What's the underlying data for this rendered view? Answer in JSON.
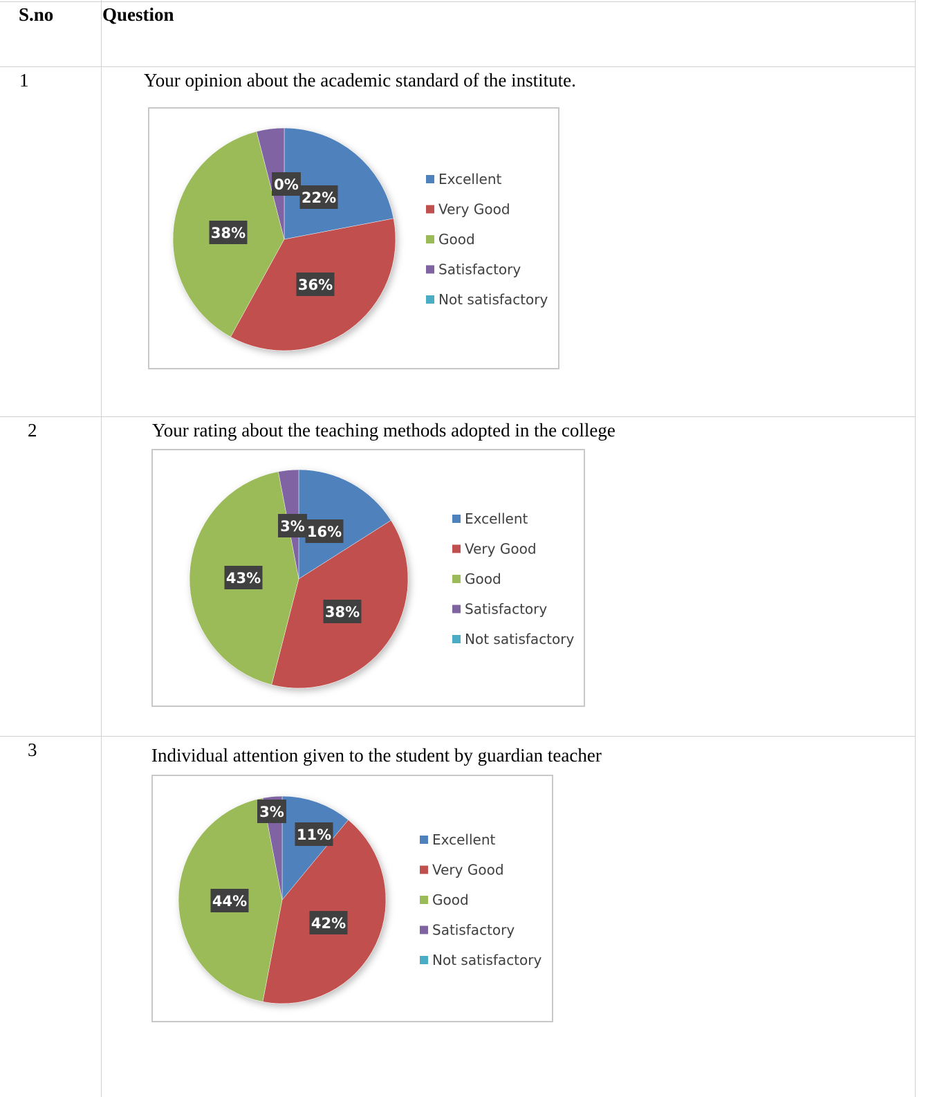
{
  "table": {
    "header_sno": "S.no",
    "header_question": "Question"
  },
  "rows": [
    {
      "sno": "1",
      "question": "Your opinion about the academic standard of the institute."
    },
    {
      "sno": "2",
      "question": "Your rating about the teaching methods adopted in the college"
    },
    {
      "sno": "3",
      "question": "Individual attention given to the student by guardian teacher"
    }
  ],
  "colors": {
    "Excellent": "#4f81bd",
    "Very Good": "#c0504d",
    "Good": "#9bbb59",
    "Satisfactory": "#8064a2",
    "Not satisfactory": "#4bacc6",
    "label_bg": "#404040"
  },
  "chart_data": [
    {
      "type": "pie",
      "categories": [
        "Excellent",
        "Very Good",
        "Good",
        "Satisfactory",
        "Not satisfactory"
      ],
      "values": [
        22,
        36,
        38,
        4,
        0
      ],
      "data_labels": [
        "22%",
        "36%",
        "38%",
        "",
        "0%"
      ],
      "legend_position": "right"
    },
    {
      "type": "pie",
      "categories": [
        "Excellent",
        "Very Good",
        "Good",
        "Satisfactory",
        "Not satisfactory"
      ],
      "values": [
        16,
        38,
        43,
        3,
        0
      ],
      "data_labels": [
        "16%",
        "38%",
        "43%",
        "3%",
        ""
      ],
      "legend_position": "right"
    },
    {
      "type": "pie",
      "categories": [
        "Excellent",
        "Very Good",
        "Good",
        "Satisfactory",
        "Not satisfactory"
      ],
      "values": [
        11,
        42,
        44,
        3,
        0
      ],
      "data_labels": [
        "11%",
        "42%",
        "44%",
        "3%",
        ""
      ],
      "legend_position": "right"
    }
  ]
}
